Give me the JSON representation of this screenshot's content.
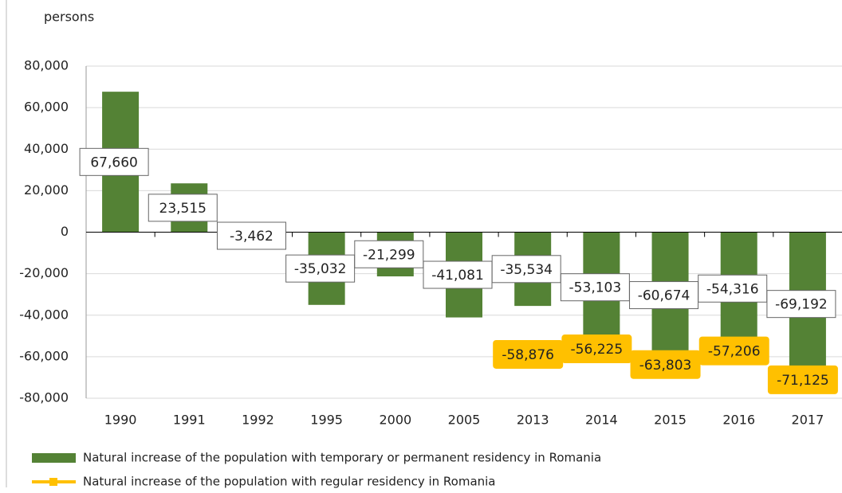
{
  "chart_data": {
    "type": "bar",
    "y_axis_label": "persons",
    "categories": [
      "1990",
      "1991",
      "1992",
      "1995",
      "2000",
      "2005",
      "2013",
      "2014",
      "2015",
      "2016",
      "2017"
    ],
    "series": [
      {
        "name": "Natural increase of the population with temporary or permanent residency in Romania",
        "color": "#548235",
        "type": "bar",
        "values": [
          67660,
          23515,
          -3462,
          -35032,
          -21299,
          -41081,
          -35534,
          -53103,
          -60674,
          -54316,
          -69192
        ],
        "value_labels": [
          "67,660",
          "23,515",
          "-3,462",
          "-35,032",
          "-21,299",
          "-41,081",
          "-35,534",
          "-53,103",
          "-60,674",
          "-54,316",
          "-69,192"
        ]
      },
      {
        "name": "Natural increase of the population with regular residency in Romania",
        "color": "#ffc000",
        "type": "line",
        "values": [
          null,
          null,
          null,
          null,
          null,
          null,
          -58876,
          -56225,
          -63803,
          -57206,
          -71125
        ],
        "value_labels": [
          null,
          null,
          null,
          null,
          null,
          null,
          "-58,876",
          "-56,225",
          "-63,803",
          "-57,206",
          "-71,125"
        ]
      }
    ],
    "ylim": [
      -80000,
      80000
    ],
    "yticks": [
      {
        "value": 80000,
        "label": "80,000"
      },
      {
        "value": 60000,
        "label": "60,000"
      },
      {
        "value": 40000,
        "label": "40,000"
      },
      {
        "value": 20000,
        "label": "20,000"
      },
      0,
      {
        "value": -20000,
        "label": "-20,000"
      },
      {
        "value": -40000,
        "label": "-40,000"
      },
      {
        "value": -60000,
        "label": "-60,000"
      },
      {
        "value": -80000,
        "label": "-80,000"
      }
    ],
    "grid": true
  }
}
